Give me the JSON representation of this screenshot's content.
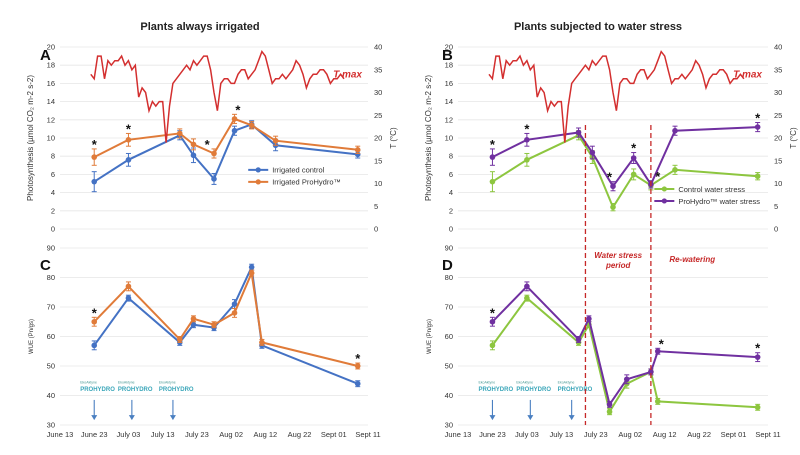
{
  "colors": {
    "irrigated_control": "#4472c4",
    "irrigated_prohydro": "#e07b39",
    "control_stress": "#8dc63f",
    "prohydro_stress": "#7030a0",
    "tmax": "#d32f2f",
    "annotation": "#c62828",
    "grid": "#e6e6e6",
    "arrow": "#4a7fc1",
    "logo": "#3aa6b9"
  },
  "column_titles": [
    "Plants always irrigated",
    "Plants subjected to water stress"
  ],
  "x_axis": {
    "ticks": [
      {
        "label": "June 13",
        "day": 0
      },
      {
        "label": "June 23",
        "day": 10
      },
      {
        "label": "July 03",
        "day": 20
      },
      {
        "label": "July 13",
        "day": 30
      },
      {
        "label": "July 23",
        "day": 40
      },
      {
        "label": "Aug 02",
        "day": 50
      },
      {
        "label": "Aug 12",
        "day": 60
      },
      {
        "label": "Aug 22",
        "day": 70
      },
      {
        "label": "Sept 01",
        "day": 80
      },
      {
        "label": "Sept 11",
        "day": 90
      }
    ],
    "range": [
      0,
      90
    ]
  },
  "photosynthesis_axis": {
    "label": "Photosynthesis (µmol CO₂ m-2 s-2)",
    "ylim": [
      0,
      20
    ],
    "ticks": [
      "0",
      "2",
      "4",
      "6",
      "8",
      "10",
      "12",
      "14",
      "16",
      "18",
      "20"
    ]
  },
  "temperature_axis": {
    "label": "T (°C)",
    "ylim": [
      0,
      40
    ],
    "ticks": [
      "0",
      "5",
      "10",
      "15",
      "20",
      "25",
      "30",
      "35",
      "40"
    ]
  },
  "wue_axis": {
    "label_c": "WUE (Pn/gs)",
    "label_d": "WUE (Pn/gs) ",
    "ylim": [
      30,
      90
    ],
    "ticks": [
      "30",
      "40",
      "50",
      "60",
      "70",
      "80",
      "90"
    ]
  },
  "tmax": {
    "label": "T max",
    "days": [
      9,
      10,
      11,
      12,
      13,
      14,
      15,
      16,
      17,
      18,
      19,
      20,
      21,
      22,
      23,
      24,
      25,
      26,
      27,
      28,
      29,
      30,
      31,
      32,
      33,
      34,
      35,
      36,
      37,
      38,
      39,
      40,
      41,
      42,
      43,
      44,
      45,
      46,
      47,
      48,
      49,
      50,
      51,
      52,
      53,
      54,
      55,
      56,
      57,
      58,
      59,
      60,
      61,
      62,
      63,
      64,
      65,
      66,
      67,
      68,
      69,
      70,
      71,
      72,
      73,
      74,
      75,
      76,
      77,
      78,
      79,
      80,
      81,
      82,
      83
    ],
    "values": [
      34,
      33,
      38,
      38,
      33,
      37,
      36,
      37,
      37,
      38,
      36,
      37,
      35,
      36,
      29,
      31,
      30,
      26,
      28,
      27,
      28,
      28,
      19,
      27,
      32,
      33,
      34,
      35,
      36,
      35,
      37,
      36,
      37,
      38,
      38,
      35,
      30,
      26,
      32,
      33,
      33,
      32,
      32,
      34,
      35,
      35,
      33,
      34,
      35,
      37,
      39,
      38,
      35,
      32,
      33,
      33,
      34,
      33,
      34,
      35,
      37,
      36,
      34,
      31,
      33,
      34,
      34,
      35,
      35,
      34,
      32,
      33,
      33,
      34,
      33
    ]
  },
  "chart_data": [
    {
      "panel": "A",
      "type": "line",
      "title": "Plants always irrigated",
      "xlabel": "",
      "ylabel": "Photosynthesis (µmol CO₂ m-2 s-2)",
      "y2label": "T (°C)",
      "ylim": [
        0,
        20
      ],
      "y2lim": [
        0,
        40
      ],
      "x": [
        10,
        20,
        35,
        39,
        45,
        51,
        56,
        63,
        87
      ],
      "series": [
        {
          "name": "Irrigated control",
          "color_key": "irrigated_control",
          "values": [
            5.2,
            7.6,
            10.3,
            8.1,
            5.5,
            10.8,
            11.5,
            9.2,
            8.2
          ],
          "errors": [
            1.1,
            0.7,
            0.5,
            0.8,
            0.6,
            0.5,
            0.4,
            0.6,
            0.4
          ]
        },
        {
          "name": "Irrigated ProHydro™",
          "color_key": "irrigated_prohydro",
          "values": [
            7.9,
            9.8,
            10.5,
            9.3,
            8.3,
            12.1,
            11.4,
            9.7,
            8.7
          ],
          "errors": [
            0.9,
            0.7,
            0.5,
            0.6,
            0.5,
            0.5,
            0.4,
            0.5,
            0.4
          ]
        },
        {
          "name": "T max",
          "axis": "right",
          "color_key": "tmax",
          "source": "tmax"
        }
      ],
      "significance_days": [
        10,
        20,
        43,
        52
      ],
      "legend": "lower-right"
    },
    {
      "panel": "B",
      "type": "line",
      "title": "Plants subjected to water stress",
      "ylabel": "Photosynthesis (µmol CO₂ m-2 s-2)",
      "y2label": "T (°C)",
      "ylim": [
        0,
        20
      ],
      "y2lim": [
        0,
        40
      ],
      "x": [
        10,
        20,
        35,
        39,
        45,
        51,
        56,
        63,
        87
      ],
      "series": [
        {
          "name": "Control water stress",
          "color_key": "control_stress",
          "values": [
            5.2,
            7.6,
            10.3,
            7.9,
            2.4,
            6.0,
            4.8,
            6.5,
            5.8
          ],
          "errors": [
            1.1,
            0.7,
            0.5,
            0.7,
            0.4,
            0.6,
            0.5,
            0.5,
            0.4
          ]
        },
        {
          "name": "ProHydro™ water stress",
          "color_key": "prohydro_stress",
          "values": [
            7.9,
            9.8,
            10.6,
            8.4,
            4.7,
            7.8,
            4.9,
            10.8,
            11.2
          ],
          "errors": [
            0.9,
            0.7,
            0.5,
            0.7,
            0.5,
            0.6,
            0.4,
            0.5,
            0.5
          ]
        },
        {
          "name": "T max",
          "axis": "right",
          "color_key": "tmax",
          "source": "tmax"
        }
      ],
      "significance_days": [
        10,
        20,
        44,
        51,
        58,
        87
      ],
      "legend": "lower-right"
    },
    {
      "panel": "C",
      "type": "line",
      "ylabel": "WUE (Pn/gs)",
      "ylim": [
        30,
        90
      ],
      "x": [
        10,
        20,
        35,
        39,
        45,
        51,
        56,
        59,
        87
      ],
      "series": [
        {
          "name": "Irrigated control",
          "color_key": "irrigated_control",
          "values": [
            57,
            73,
            58,
            64,
            63,
            71,
            83.5,
            57,
            44
          ],
          "errors": [
            1.5,
            1.0,
            1.0,
            1.0,
            1.0,
            1.5,
            1.0,
            1.0,
            1.0
          ]
        },
        {
          "name": "Irrigated ProHydro™",
          "color_key": "irrigated_prohydro",
          "values": [
            65,
            77,
            59,
            66,
            64,
            68,
            81.5,
            58,
            50
          ],
          "errors": [
            1.5,
            1.5,
            1.0,
            1.0,
            1.0,
            1.5,
            1.0,
            1.0,
            1.0
          ]
        }
      ],
      "significance_days": [
        10,
        87
      ],
      "treatment_days": [
        10,
        21,
        33
      ]
    },
    {
      "panel": "D",
      "type": "line",
      "ylabel": "WUE (Pn/gs)",
      "ylim": [
        30,
        90
      ],
      "x": [
        10,
        20,
        35,
        38,
        44,
        49,
        56,
        58,
        87
      ],
      "series": [
        {
          "name": "Control water stress",
          "color_key": "control_stress",
          "values": [
            57,
            73,
            58,
            64,
            34.5,
            44,
            48,
            38,
            36
          ],
          "errors": [
            1.5,
            1.0,
            1.0,
            1.0,
            1.0,
            1.5,
            1.0,
            1.0,
            1.0
          ]
        },
        {
          "name": "ProHydro™ water stress",
          "color_key": "prohydro_stress",
          "values": [
            65,
            77,
            59,
            66,
            37,
            45.5,
            48,
            55,
            53
          ],
          "errors": [
            1.5,
            1.5,
            1.0,
            1.0,
            1.0,
            1.5,
            1.0,
            1.0,
            1.5
          ]
        }
      ],
      "significance_days": [
        10,
        59,
        87
      ],
      "treatment_days": [
        10,
        21,
        33
      ]
    }
  ],
  "annotations": {
    "water_stress_period": [
      "Water stress",
      "period"
    ],
    "re_watering": "Re-watering",
    "stress_lines_days": [
      37,
      56
    ],
    "treatment_logo_small": "EkoAktyne",
    "treatment_logo_big": "PROHYDRO"
  }
}
